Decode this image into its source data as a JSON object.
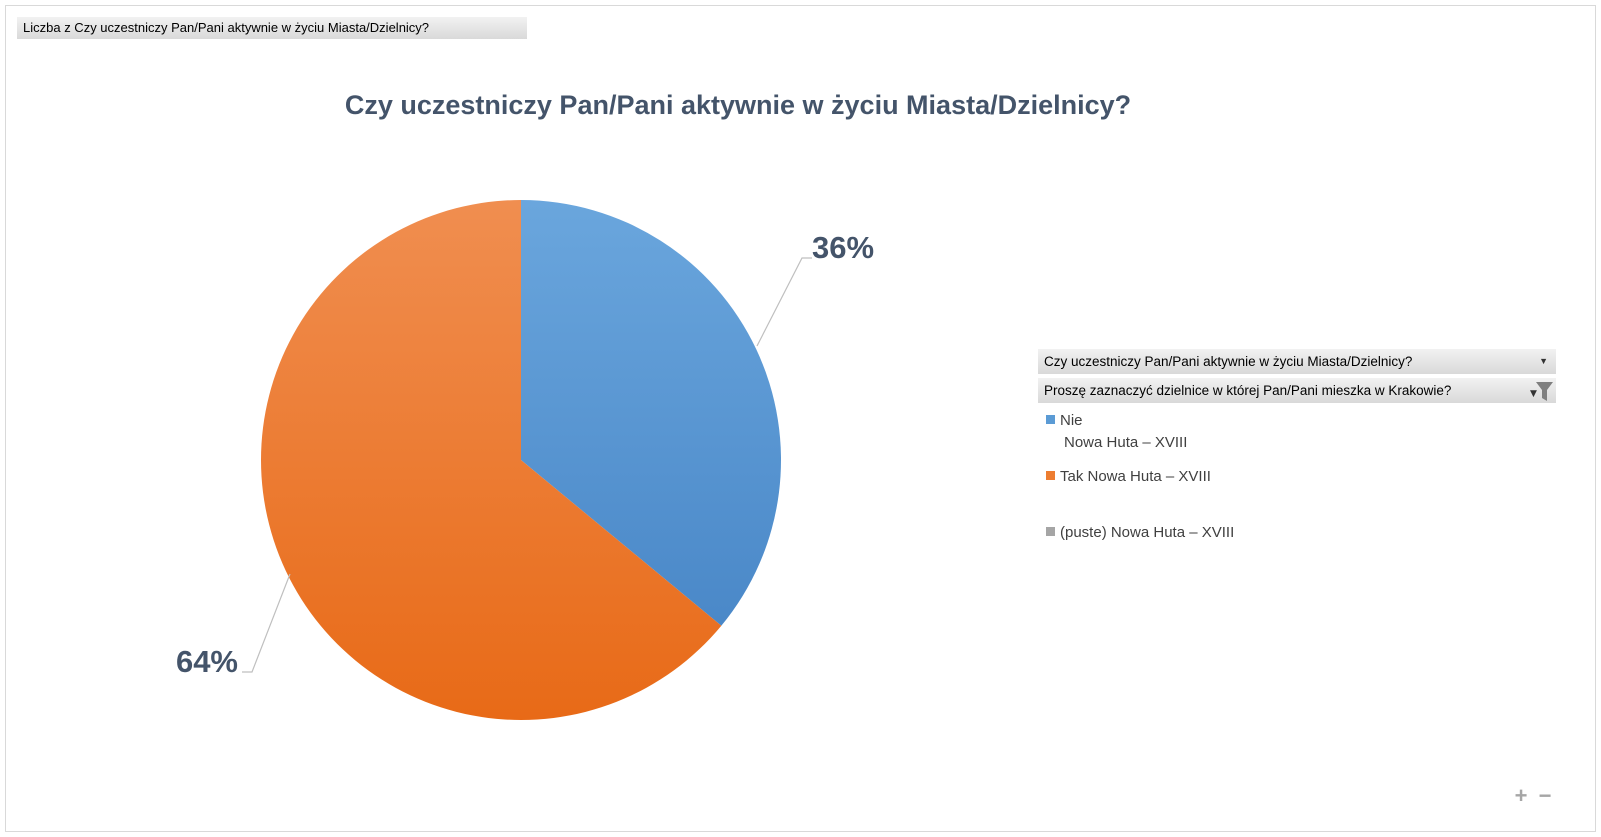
{
  "field_button": {
    "label": "Liczba z  Czy uczestniczy Pan/Pani aktywnie w życiu Miasta/Dzielnicy?"
  },
  "chart_data": {
    "type": "pie",
    "title": "Czy uczestniczy Pan/Pani aktywnie w życiu Miasta/Dzielnicy?",
    "slices": [
      {
        "category": "Nie",
        "subcategory": "Nowa Huta – XVIII",
        "value": 36,
        "label": "36%",
        "color": "#5b9bd5"
      },
      {
        "category": "Tak",
        "subcategory": "Nowa Huta – XVIII",
        "value": 64,
        "label": "64%",
        "color": "#ed7d31"
      },
      {
        "category": "(puste)",
        "subcategory": "Nowa Huta – XVIII",
        "value": 0,
        "label": "",
        "color": "#a5a5a5"
      }
    ],
    "legend_position": "right"
  },
  "legend": {
    "dropdown_series": "Czy uczestniczy Pan/Pani aktywnie w życiu Miasta/Dzielnicy?",
    "dropdown_filter": "Proszę zaznaczyć  dzielnice w której Pan/Pani mieszka w Krakowie?",
    "items": [
      {
        "line1": "Nie",
        "line2": "Nowa Huta – XVIII",
        "color": "#5b9bd5"
      },
      {
        "line1": "Tak Nowa Huta – XVIII",
        "line2": "",
        "color": "#ed7d31"
      },
      {
        "line1": "(puste) Nowa Huta – XVIII",
        "line2": "",
        "color": "#a5a5a5"
      }
    ],
    "icons": {
      "dropdown_arrow": "chevron-down-icon",
      "filter": "filter-icon"
    }
  },
  "zoom": {
    "plus": "+",
    "minus": "−"
  }
}
